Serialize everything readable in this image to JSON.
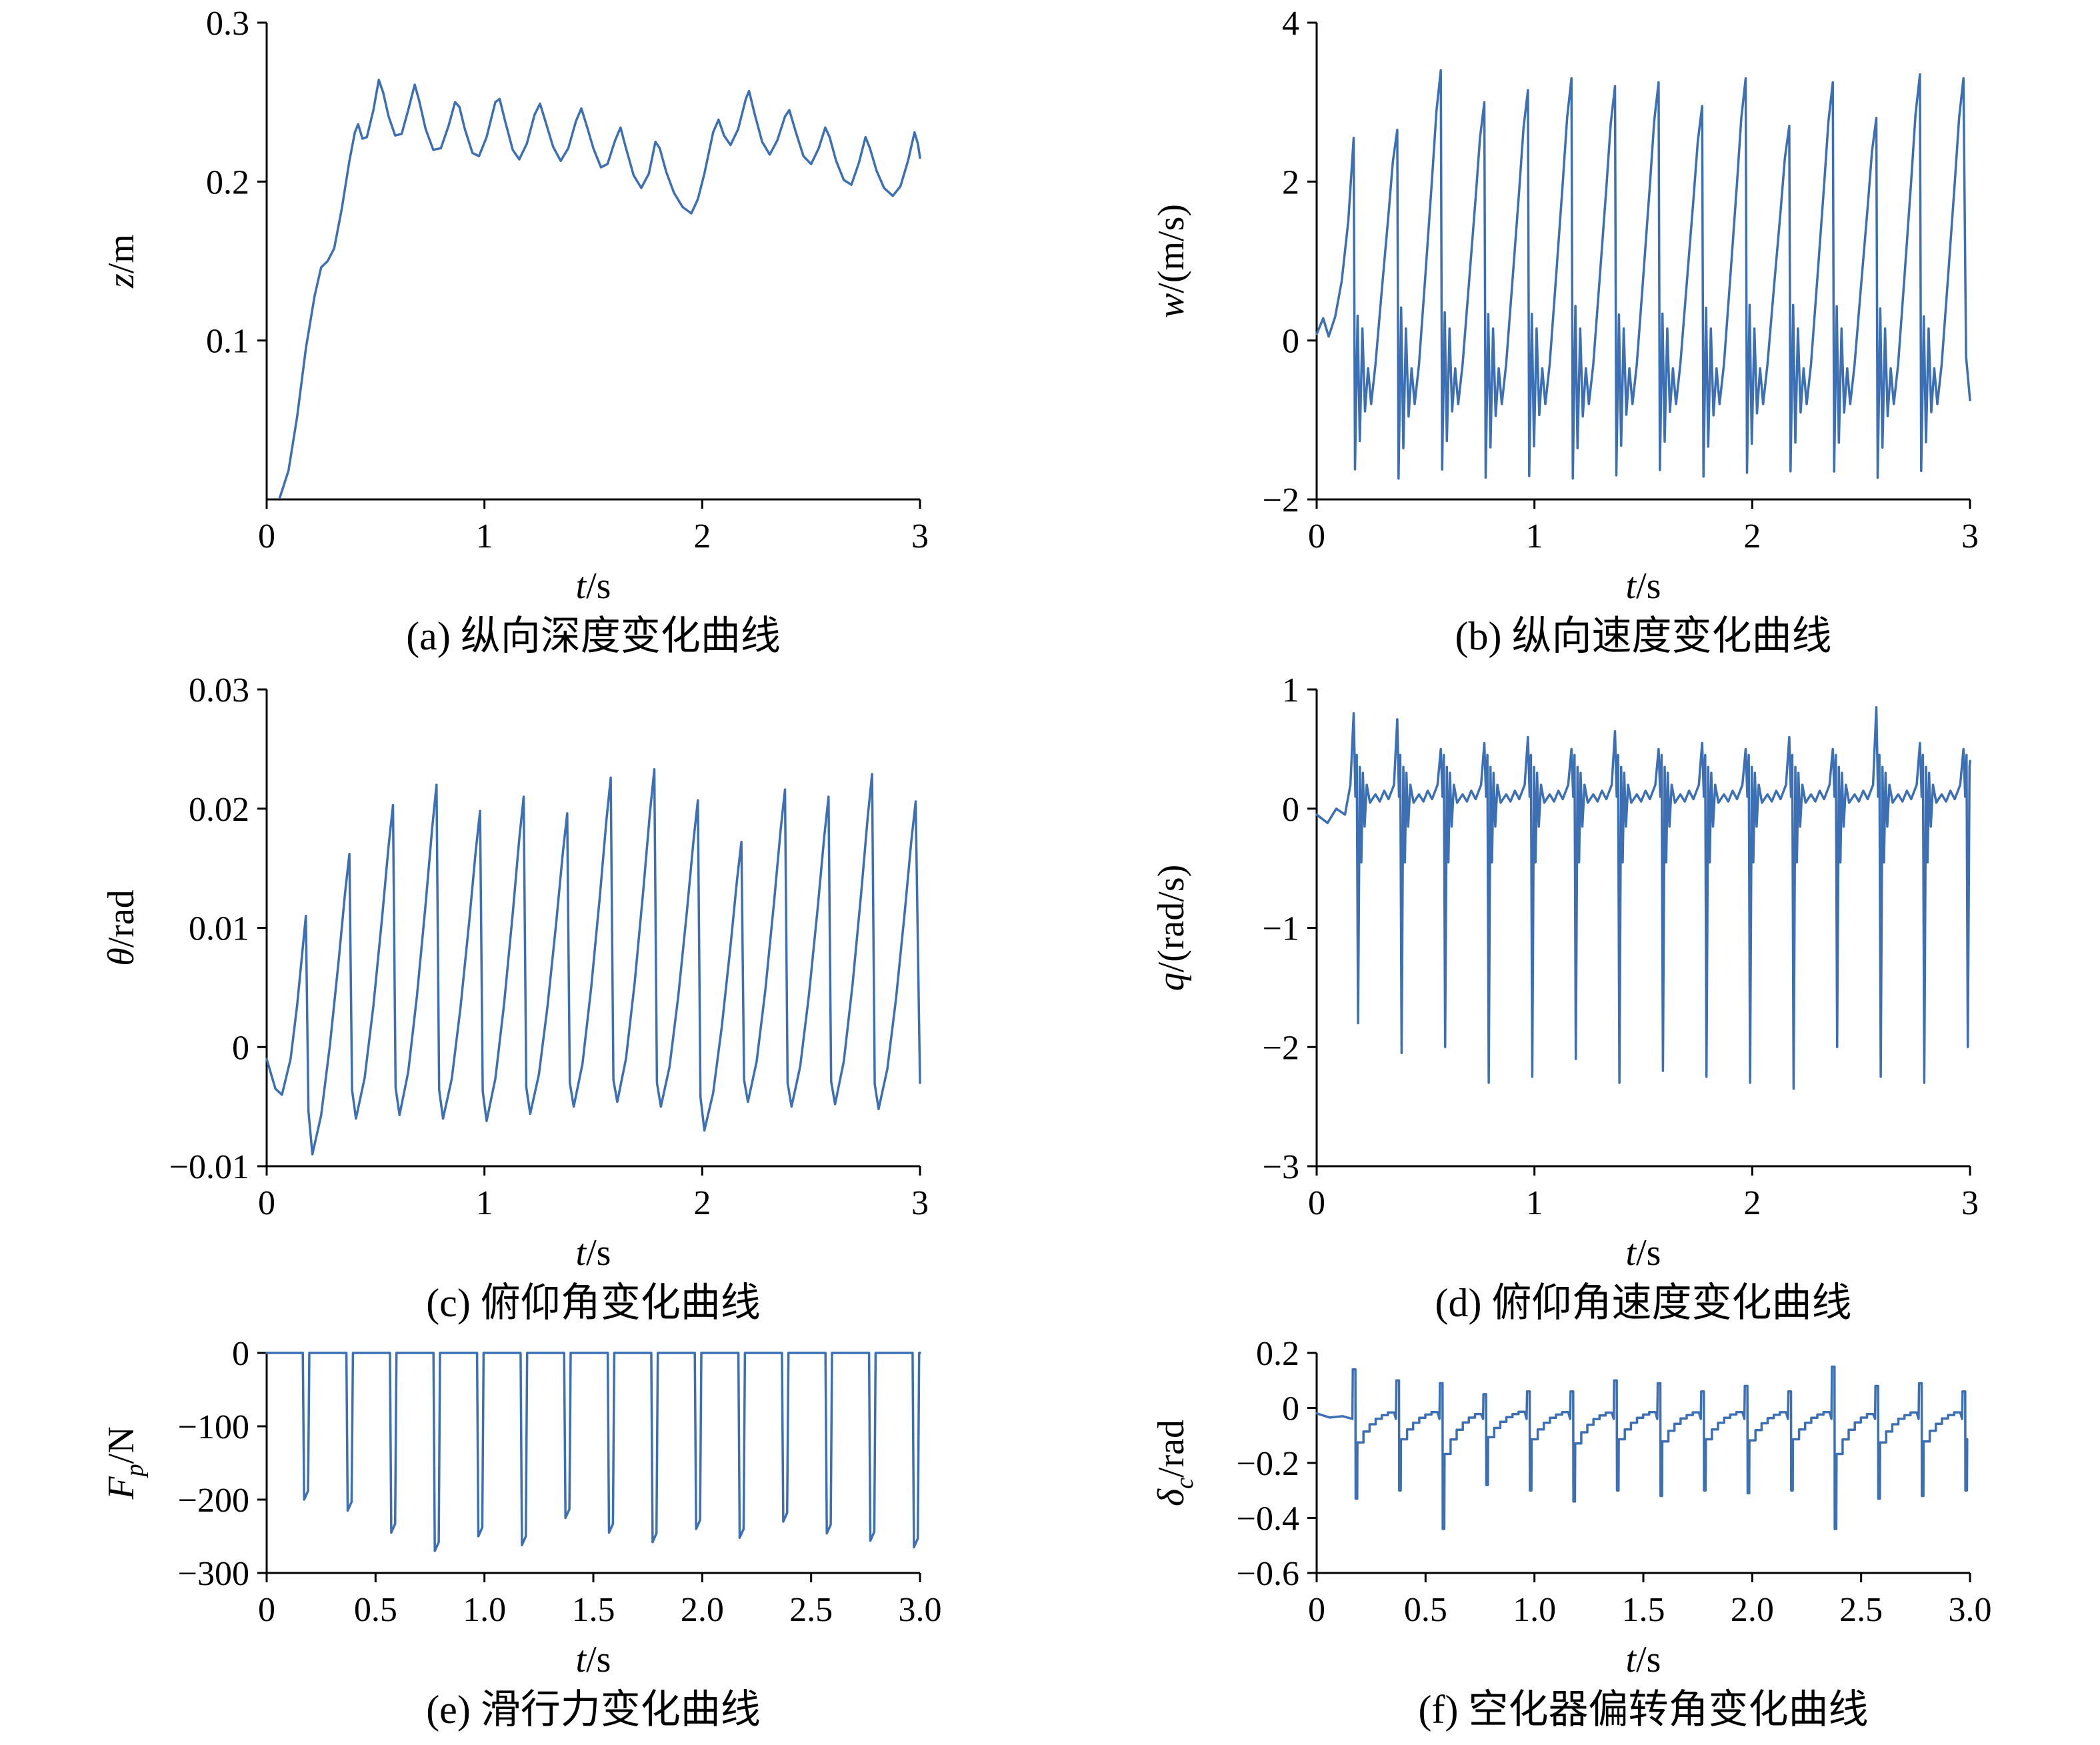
{
  "colors": {
    "line": "#3C6FB4",
    "axis": "#000000",
    "background": "#ffffff"
  },
  "chart_data": [
    {
      "id": "a",
      "type": "line",
      "caption": "(a) 纵向深度变化曲线",
      "xlabel": "t/s",
      "ylabel": "z/m",
      "xlabel_parts": [
        {
          "t": "t",
          "i": 1
        },
        {
          "t": "/s"
        }
      ],
      "ylabel_parts": [
        {
          "t": "z",
          "i": 1
        },
        {
          "t": "/m"
        }
      ],
      "xlim": [
        0,
        3
      ],
      "ylim": [
        0,
        0.3
      ],
      "xtick_values": [
        0,
        1,
        2,
        3
      ],
      "xtick_labels": [
        "0",
        "1",
        "2",
        "3"
      ],
      "ytick_values": [
        0.1,
        0.2,
        0.3
      ],
      "ytick_labels": [
        "0.1",
        "0.2",
        "0.3"
      ],
      "series": {
        "kind": "explicit",
        "points": [
          [
            0.06,
            0.001
          ],
          [
            0.1,
            0.018
          ],
          [
            0.14,
            0.052
          ],
          [
            0.18,
            0.095
          ],
          [
            0.22,
            0.128
          ],
          [
            0.25,
            0.146
          ],
          [
            0.28,
            0.15
          ],
          [
            0.31,
            0.158
          ],
          [
            0.345,
            0.183
          ],
          [
            0.38,
            0.213
          ],
          [
            0.405,
            0.231
          ],
          [
            0.42,
            0.236
          ],
          [
            0.44,
            0.227
          ],
          [
            0.46,
            0.228
          ],
          [
            0.49,
            0.245
          ],
          [
            0.515,
            0.264
          ],
          [
            0.535,
            0.256
          ],
          [
            0.56,
            0.241
          ],
          [
            0.59,
            0.229
          ],
          [
            0.62,
            0.23
          ],
          [
            0.65,
            0.245
          ],
          [
            0.68,
            0.261
          ],
          [
            0.7,
            0.251
          ],
          [
            0.73,
            0.233
          ],
          [
            0.765,
            0.22
          ],
          [
            0.8,
            0.221
          ],
          [
            0.835,
            0.235
          ],
          [
            0.865,
            0.25
          ],
          [
            0.885,
            0.247
          ],
          [
            0.91,
            0.233
          ],
          [
            0.945,
            0.218
          ],
          [
            0.975,
            0.216
          ],
          [
            1.01,
            0.228
          ],
          [
            1.05,
            0.25
          ],
          [
            1.07,
            0.252
          ],
          [
            1.095,
            0.238
          ],
          [
            1.13,
            0.22
          ],
          [
            1.16,
            0.214
          ],
          [
            1.195,
            0.224
          ],
          [
            1.23,
            0.242
          ],
          [
            1.255,
            0.249
          ],
          [
            1.28,
            0.238
          ],
          [
            1.315,
            0.222
          ],
          [
            1.35,
            0.213
          ],
          [
            1.385,
            0.221
          ],
          [
            1.42,
            0.238
          ],
          [
            1.445,
            0.246
          ],
          [
            1.47,
            0.235
          ],
          [
            1.5,
            0.221
          ],
          [
            1.535,
            0.209
          ],
          [
            1.565,
            0.211
          ],
          [
            1.6,
            0.226
          ],
          [
            1.625,
            0.234
          ],
          [
            1.65,
            0.221
          ],
          [
            1.685,
            0.204
          ],
          [
            1.72,
            0.196
          ],
          [
            1.755,
            0.205
          ],
          [
            1.785,
            0.225
          ],
          [
            1.805,
            0.221
          ],
          [
            1.835,
            0.206
          ],
          [
            1.87,
            0.193
          ],
          [
            1.91,
            0.184
          ],
          [
            1.95,
            0.18
          ],
          [
            1.98,
            0.189
          ],
          [
            2.01,
            0.205
          ],
          [
            2.05,
            0.231
          ],
          [
            2.075,
            0.239
          ],
          [
            2.1,
            0.229
          ],
          [
            2.13,
            0.223
          ],
          [
            2.165,
            0.233
          ],
          [
            2.2,
            0.252
          ],
          [
            2.215,
            0.257
          ],
          [
            2.24,
            0.243
          ],
          [
            2.275,
            0.225
          ],
          [
            2.31,
            0.217
          ],
          [
            2.345,
            0.226
          ],
          [
            2.38,
            0.241
          ],
          [
            2.4,
            0.245
          ],
          [
            2.43,
            0.231
          ],
          [
            2.465,
            0.216
          ],
          [
            2.5,
            0.211
          ],
          [
            2.535,
            0.221
          ],
          [
            2.565,
            0.234
          ],
          [
            2.585,
            0.228
          ],
          [
            2.615,
            0.213
          ],
          [
            2.65,
            0.201
          ],
          [
            2.685,
            0.198
          ],
          [
            2.72,
            0.212
          ],
          [
            2.75,
            0.228
          ],
          [
            2.77,
            0.221
          ],
          [
            2.8,
            0.207
          ],
          [
            2.835,
            0.196
          ],
          [
            2.875,
            0.191
          ],
          [
            2.91,
            0.197
          ],
          [
            2.945,
            0.213
          ],
          [
            2.975,
            0.231
          ],
          [
            2.99,
            0.224
          ],
          [
            3.0,
            0.215
          ]
        ]
      }
    },
    {
      "id": "b",
      "type": "line",
      "caption": "(b) 纵向速度变化曲线",
      "xlabel": "t/s",
      "ylabel": "w/(m/s)",
      "xlabel_parts": [
        {
          "t": "t",
          "i": 1
        },
        {
          "t": "/s"
        }
      ],
      "ylabel_parts": [
        {
          "t": "w",
          "i": 1
        },
        {
          "t": "/(m/s)"
        }
      ],
      "xlim": [
        0,
        3
      ],
      "ylim": [
        -2,
        4
      ],
      "xtick_values": [
        0,
        1,
        2,
        3
      ],
      "xtick_labels": [
        "0",
        "1",
        "2",
        "3"
      ],
      "ytick_values": [
        -2,
        0,
        2,
        4
      ],
      "ytick_labels": [
        "−2",
        "0",
        "2",
        "4"
      ],
      "series": {
        "kind": "saw_velocity",
        "t0": 0.17,
        "period": 0.2,
        "trough": -1.62,
        "lead": [
          [
            0,
            0.08
          ],
          [
            0.03,
            0.28
          ],
          [
            0.055,
            0.05
          ],
          [
            0.085,
            0.3
          ],
          [
            0.115,
            0.75
          ],
          [
            0.145,
            1.5
          ]
        ],
        "peaks": [
          2.55,
          2.65,
          3.4,
          3.0,
          3.15,
          3.3,
          3.2,
          3.25,
          2.95,
          3.3,
          2.7,
          3.25,
          2.8,
          3.35,
          3.3
        ],
        "end": [
          -0.2,
          -0.75
        ]
      }
    },
    {
      "id": "c",
      "type": "line",
      "caption": "(c) 俯仰角变化曲线",
      "xlabel": "t/s",
      "ylabel": "θ/rad",
      "xlabel_parts": [
        {
          "t": "t",
          "i": 1
        },
        {
          "t": "/s"
        }
      ],
      "ylabel_parts": [
        {
          "t": "θ",
          "i": 1
        },
        {
          "t": "/rad"
        }
      ],
      "xlim": [
        0,
        3
      ],
      "ylim": [
        -0.01,
        0.03
      ],
      "xtick_values": [
        0,
        1,
        2,
        3
      ],
      "xtick_labels": [
        "0",
        "1",
        "2",
        "3"
      ],
      "ytick_values": [
        -0.01,
        0,
        0.01,
        0.02,
        0.03
      ],
      "ytick_labels": [
        "−0.01",
        "0",
        "0.01",
        "0.02",
        "0.03"
      ],
      "series": {
        "kind": "saw_pitch",
        "t0": 0.18,
        "period": 0.2,
        "lead": [
          [
            0,
            -0.001
          ],
          [
            0.04,
            -0.0035
          ],
          [
            0.07,
            -0.004
          ],
          [
            0.11,
            -0.001
          ],
          [
            0.14,
            0.0035
          ]
        ],
        "peaks": [
          0.011,
          0.0162,
          0.0203,
          0.022,
          0.0198,
          0.021,
          0.0196,
          0.0226,
          0.0233,
          0.0207,
          0.0172,
          0.0216,
          0.021,
          0.0229,
          0.0206
        ],
        "troughs": [
          -0.009,
          -0.006,
          -0.0057,
          -0.006,
          -0.0062,
          -0.0056,
          -0.005,
          -0.0046,
          -0.005,
          -0.007,
          -0.0046,
          -0.005,
          -0.0048,
          -0.0052,
          -0.004
        ],
        "end": -0.003
      }
    },
    {
      "id": "d",
      "type": "line",
      "caption": "(d) 俯仰角速度变化曲线",
      "xlabel": "t/s",
      "ylabel": "q/(rad/s)",
      "xlabel_parts": [
        {
          "t": "t",
          "i": 1
        },
        {
          "t": "/s"
        }
      ],
      "ylabel_parts": [
        {
          "t": "q",
          "i": 1
        },
        {
          "t": "/(rad/s)"
        }
      ],
      "xlim": [
        0,
        3
      ],
      "ylim": [
        -3,
        1
      ],
      "xtick_values": [
        0,
        1,
        2,
        3
      ],
      "xtick_labels": [
        "0",
        "1",
        "2",
        "3"
      ],
      "ytick_values": [
        -3,
        -2,
        -1,
        0,
        1
      ],
      "ytick_labels": [
        "−3",
        "−2",
        "−1",
        "0",
        "1"
      ],
      "series": {
        "kind": "spikes",
        "t0": 0.19,
        "period": 0.2,
        "lead": [
          [
            0,
            -0.05
          ],
          [
            0.05,
            -0.12
          ],
          [
            0.09,
            0.0
          ],
          [
            0.13,
            -0.05
          ]
        ],
        "depths": [
          -1.8,
          -2.05,
          -2.0,
          -2.3,
          -2.25,
          -2.1,
          -2.3,
          -2.2,
          -2.25,
          -2.3,
          -2.35,
          -2.0,
          -2.25,
          -2.3,
          -2.0
        ],
        "bumps": [
          0.8,
          0.75,
          0.5,
          0.55,
          0.6,
          0.5,
          0.65,
          0.5,
          0.55,
          0.5,
          0.6,
          0.5,
          0.85,
          0.55,
          0.5
        ]
      }
    },
    {
      "id": "e",
      "type": "line",
      "caption": "(e) 滑行力变化曲线",
      "xlabel": "t/s",
      "ylabel": "Fp/N",
      "xlabel_parts": [
        {
          "t": "t",
          "i": 1
        },
        {
          "t": "/s"
        }
      ],
      "ylabel_parts": [
        {
          "t": "F",
          "i": 1
        },
        {
          "t": "p",
          "i": 1,
          "sub": 1
        },
        {
          "t": "/N"
        }
      ],
      "xlim": [
        0,
        3
      ],
      "ylim": [
        -300,
        0
      ],
      "xtick_values": [
        0,
        0.5,
        1,
        1.5,
        2,
        2.5,
        3
      ],
      "xtick_labels": [
        "0",
        "0.5",
        "1.0",
        "1.5",
        "2.0",
        "2.5",
        "3.0"
      ],
      "ytick_values": [
        -300,
        -200,
        -100,
        0
      ],
      "ytick_labels": [
        "−300",
        "−200",
        "−100",
        "0"
      ],
      "series": {
        "kind": "pulses",
        "t0": 0.17,
        "period": 0.2,
        "depths": [
          -200,
          -215,
          -245,
          -270,
          -250,
          -262,
          -225,
          -245,
          -258,
          -240,
          -252,
          -230,
          -246,
          -256,
          -265
        ]
      }
    },
    {
      "id": "f",
      "type": "line",
      "caption": "(f) 空化器偏转角变化曲线",
      "xlabel": "t/s",
      "ylabel": "δc/rad",
      "xlabel_parts": [
        {
          "t": "t",
          "i": 1
        },
        {
          "t": "/s"
        }
      ],
      "ylabel_parts": [
        {
          "t": "δ",
          "i": 1
        },
        {
          "t": "c",
          "i": 1,
          "sub": 1
        },
        {
          "t": "/rad"
        }
      ],
      "xlim": [
        0,
        3
      ],
      "ylim": [
        -0.6,
        0.2
      ],
      "xtick_values": [
        0,
        0.5,
        1,
        1.5,
        2,
        2.5,
        3
      ],
      "xtick_labels": [
        "0",
        "0.5",
        "1.0",
        "1.5",
        "2.0",
        "2.5",
        "3.0"
      ],
      "ytick_values": [
        -0.6,
        -0.4,
        -0.2,
        0,
        0.2
      ],
      "ytick_labels": [
        "−0.6",
        "−0.4",
        "−0.2",
        "0",
        "0.2"
      ],
      "series": {
        "kind": "steps",
        "t0": 0.17,
        "period": 0.2,
        "lead": [
          [
            0,
            -0.02
          ],
          [
            0.06,
            -0.035
          ],
          [
            0.12,
            -0.03
          ]
        ],
        "depths": [
          -0.33,
          -0.3,
          -0.44,
          -0.28,
          -0.3,
          -0.34,
          -0.3,
          -0.32,
          -0.3,
          -0.31,
          -0.3,
          -0.44,
          -0.33,
          -0.32,
          -0.3
        ],
        "pos": [
          0.14,
          0.1,
          0.09,
          0.05,
          0.06,
          0.06,
          0.1,
          0.09,
          0.06,
          0.08,
          0.06,
          0.15,
          0.08,
          0.09,
          0.06
        ]
      }
    }
  ]
}
